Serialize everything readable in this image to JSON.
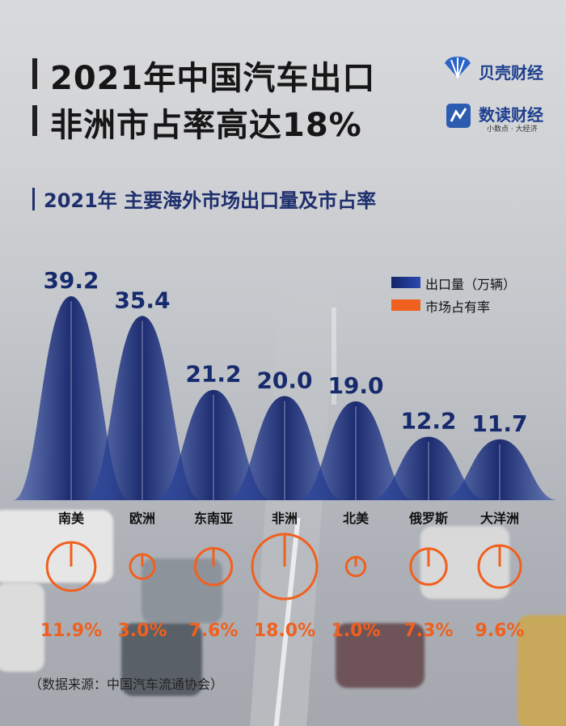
{
  "title_line1": "2021年中国汽车出口",
  "title_line2": "非洲市占率高达18%",
  "logo1": {
    "text": "贝壳财经"
  },
  "logo2": {
    "text": "数读财经",
    "sub": "小数点 · 大经济"
  },
  "subtitle": "2021年 主要海外市场出口量及市占率",
  "legend": {
    "volume": "出口量（万辆）",
    "share": "市场占有率"
  },
  "colors": {
    "volume": "#1b2f7a",
    "share": "#f0601e",
    "title": "#161616",
    "subtitle": "#1f2f6e"
  },
  "chart_data": {
    "type": "area",
    "categories": [
      "南美",
      "欧洲",
      "东南亚",
      "非洲",
      "北美",
      "俄罗斯",
      "大洋洲"
    ],
    "series": [
      {
        "name": "出口量（万辆）",
        "values": [
          39.2,
          35.4,
          21.2,
          20.0,
          19.0,
          12.2,
          11.7
        ]
      },
      {
        "name": "市场占有率",
        "values": [
          11.9,
          3.0,
          7.6,
          18.0,
          1.0,
          7.3,
          9.6
        ]
      }
    ],
    "value_labels": [
      "39.2",
      "35.4",
      "21.2",
      "20.0",
      "19.0",
      "12.2",
      "11.7"
    ],
    "share_labels": [
      "11.9%",
      "3.0%",
      "7.6%",
      "18.0%",
      "1.0%",
      "7.3%",
      "9.6%"
    ],
    "legend_position": "top-right"
  },
  "source": "（数据来源：中国汽车流通协会）"
}
